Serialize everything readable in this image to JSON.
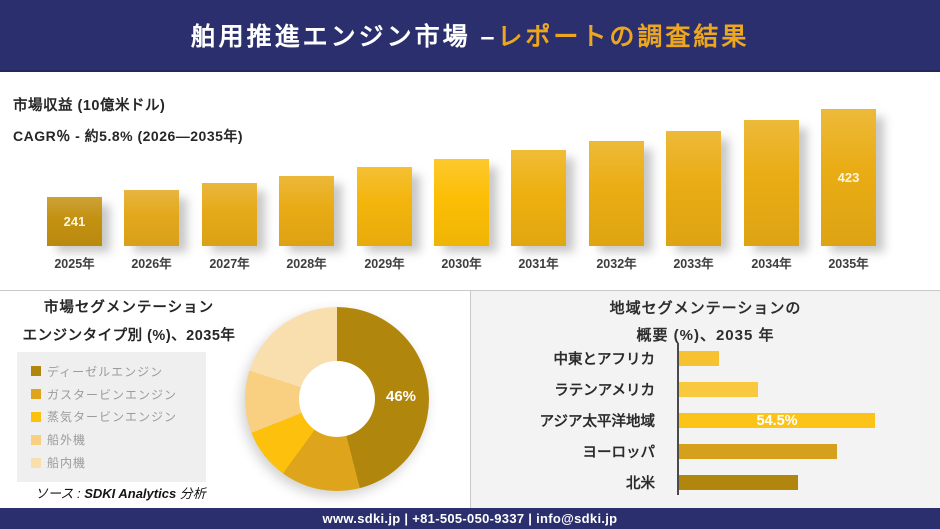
{
  "header": {
    "title_white": "舶用推進エンジン市場 –",
    "title_gold": "レポートの調査結果"
  },
  "revenue": {
    "metric_label": "市場収益 (10億米ドル)",
    "cagr_label": "CAGR％ - 約5.8% (2026―2035年)"
  },
  "segmentation": {
    "title_line1": "市場セグメンテーション",
    "title_line2": "エンジンタイプ別 (%)、2035年",
    "source_prefix": "ソース : ",
    "source_brand": "SDKI Analytics",
    "source_suffix": " 分析"
  },
  "region": {
    "title_line1": "地域セグメンテーションの",
    "title_line2": "概要 (%)、2035 年"
  },
  "footer": {
    "text": "www.sdki.jp | +81-505-050-9337 | info@sdki.jp"
  },
  "colors": {
    "navy": "#2b2f6d",
    "gold_accent": "#eda71f",
    "panel_gray": "#f3f3f3",
    "divider": "#c9c9c9"
  },
  "chart_data": [
    {
      "id": "revenue_by_year",
      "type": "bar",
      "title": "市場収益 (10億米ドル)",
      "subtitle": "CAGR％ - 約5.8% (2026―2035年)",
      "categories": [
        "2025年",
        "2026年",
        "2027年",
        "2028年",
        "2029年",
        "2030年",
        "2031年",
        "2032年",
        "2033年",
        "2034年",
        "2035年"
      ],
      "values": [
        241,
        255,
        270,
        285,
        302,
        319,
        338,
        357,
        378,
        400,
        423
      ],
      "value_labels": [
        "241",
        "",
        "",
        "",
        "",
        "",
        "",
        "",
        "",
        "",
        "423"
      ],
      "bar_colors": [
        "#c39110",
        "#e3a81c",
        "#e6aa18",
        "#e9ab15",
        "#f3b40c",
        "#fcbe05",
        "#edb010",
        "#eaad13",
        "#e9ac14",
        "#e9ac14",
        "#e9ac14"
      ],
      "grid": false,
      "note_axis": "no visible axis; only first and last bars carry data labels"
    },
    {
      "id": "engine_type_share_2035",
      "type": "pie",
      "subtype": "donut",
      "title": "市場セグメンテーション エンジンタイプ別 (%)、2035年",
      "labels": [
        "ディーゼルエンジン",
        "ガスタービンエンジン",
        "蒸気タービンエンジン",
        "船外機",
        "船内機"
      ],
      "values": [
        46,
        14,
        9,
        11,
        20
      ],
      "slice_labels": [
        "46%",
        "",
        "",
        "",
        ""
      ],
      "colors": [
        "#b1860d",
        "#dda41c",
        "#fcc00d",
        "#f9cf82",
        "#fadfae"
      ],
      "legend_position": "left"
    },
    {
      "id": "regional_overview_2035",
      "type": "bar",
      "orientation": "horizontal",
      "title": "地域セグメンテーションの 概要 (%)、2035 年",
      "categories": [
        "中東とアフリカ",
        "ラテンアメリカ",
        "アジア太平洋地域",
        "ヨーロッパ",
        "北米"
      ],
      "values": [
        11,
        22,
        54.5,
        44,
        33
      ],
      "value_labels": [
        "",
        "",
        "54.5%",
        "",
        ""
      ],
      "colors": [
        "#f6c232",
        "#f8c83e",
        "#fcc418",
        "#d5a11c",
        "#b1860f"
      ],
      "note": "only アジア太平洋地域 carries a printed value (54.5%); other values estimated from bar lengths"
    }
  ]
}
